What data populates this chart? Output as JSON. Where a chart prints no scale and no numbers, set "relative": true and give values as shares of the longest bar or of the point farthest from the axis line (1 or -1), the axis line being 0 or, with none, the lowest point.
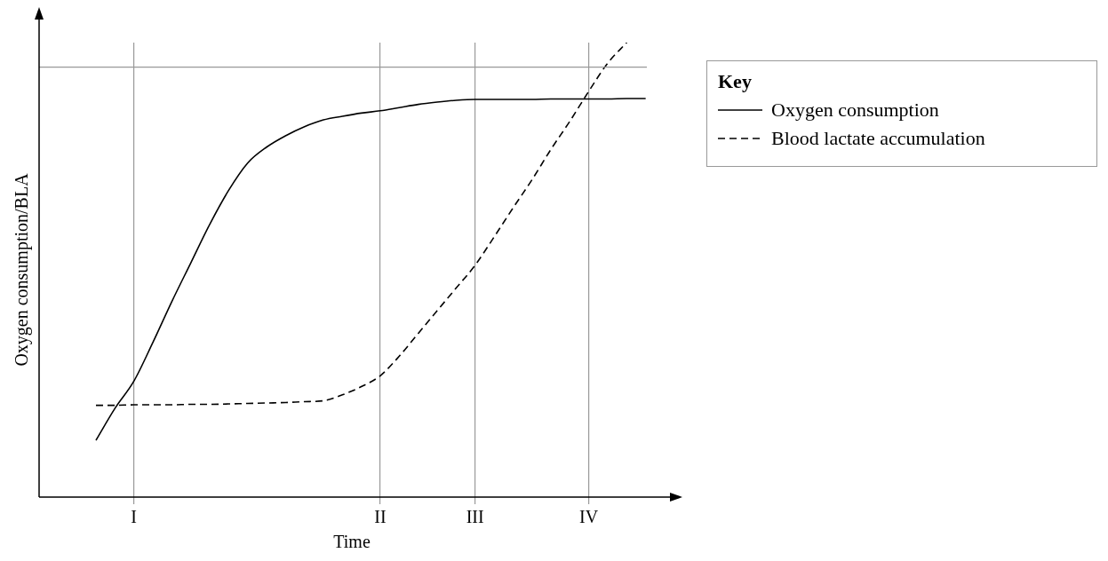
{
  "chart_data": {
    "type": "line",
    "relative": true,
    "xlabel": "Time",
    "ylabel": "Oxygen consumption/BLA",
    "legend_title": "Key",
    "legend": "right",
    "grid": "x",
    "marker": "none",
    "categories": [
      null,
      null,
      null,
      null,
      null,
      "I",
      null,
      null,
      null,
      null,
      null,
      null,
      null,
      null,
      null,
      null,
      null,
      null,
      "II",
      null,
      null,
      null,
      null,
      "III",
      null,
      null,
      null,
      null,
      null,
      "IV",
      null,
      null,
      null,
      null
    ],
    "ref_lines": [
      {
        "axis": "y",
        "value": 0.946,
        "color": "#999999"
      }
    ],
    "series": [
      {
        "name": "Oxygen consumption",
        "color": "#000000",
        "line_style": "solid",
        "values": [
          null,
          null,
          null,
          0.125,
          0.195,
          0.255,
          0.34,
          0.43,
          0.515,
          0.6,
          0.675,
          0.735,
          0.77,
          0.795,
          0.815,
          0.83,
          0.838,
          0.845,
          0.85,
          0.857,
          0.864,
          0.869,
          0.873,
          0.875,
          0.875,
          0.875,
          0.875,
          0.876,
          0.876,
          0.876,
          0.876,
          0.877,
          0.877,
          null
        ]
      },
      {
        "name": "Blood lactate accumulation",
        "color": "#000000",
        "line_style": "dashed",
        "values": [
          null,
          null,
          null,
          0.202,
          0.202,
          0.203,
          0.203,
          0.203,
          0.204,
          0.204,
          0.205,
          0.206,
          0.207,
          0.208,
          0.21,
          0.212,
          0.225,
          0.243,
          0.267,
          0.31,
          0.36,
          0.41,
          0.46,
          0.51,
          0.572,
          0.636,
          0.698,
          0.765,
          0.827,
          0.893,
          0.955,
          1.0,
          null,
          null
        ]
      }
    ]
  }
}
